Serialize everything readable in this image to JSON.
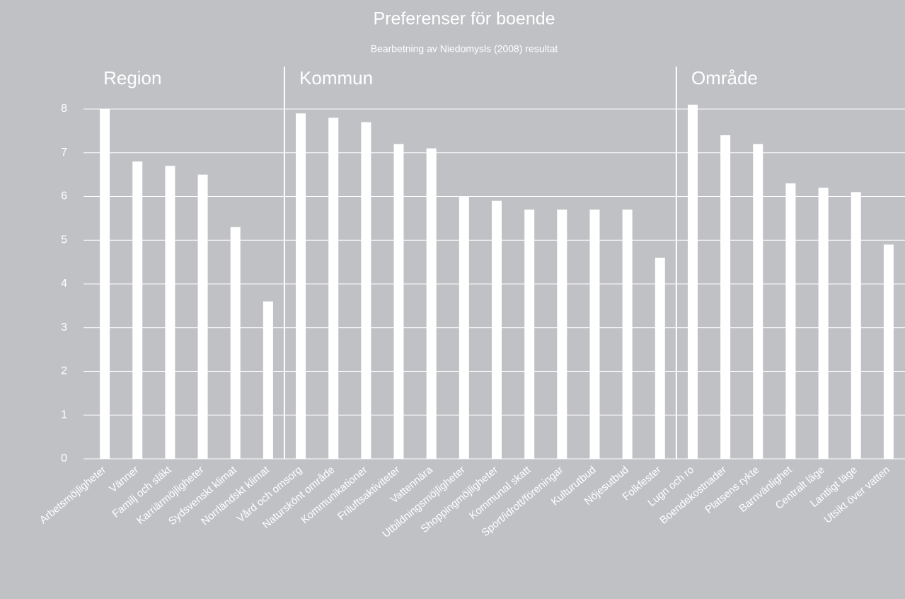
{
  "chart_data": {
    "type": "bar",
    "title": "Preferenser för boende",
    "subtitle": "Bearbetning av Niedomysls (2008) resultat",
    "color": "#ffffff",
    "grid": true,
    "ylim": [
      0,
      8
    ],
    "yticks": [
      0,
      1,
      2,
      3,
      4,
      5,
      6,
      7,
      8
    ],
    "groups": [
      {
        "name": "Region",
        "categories": [
          "Arbetsmöjligheter",
          "Vänner",
          "Familj och släkt",
          "Karriärmöjligheter",
          "Sydsvenskt klimat",
          "Norrländskt klimat"
        ],
        "values": [
          8.0,
          6.8,
          6.7,
          6.5,
          5.3,
          3.6
        ]
      },
      {
        "name": "Kommun",
        "categories": [
          "Vård och omsorg",
          "Naturskönt område",
          "Kommunikationer",
          "Friluftsaktiviteter",
          "Vattennära",
          "Utbildningsmöjligheter",
          "Shoppingmöjligheter",
          "Kommunal skatt",
          "Sport/idrott/föreningar",
          "Kulturutbud",
          "Nöjesutbud",
          "Folkfester"
        ],
        "values": [
          7.9,
          7.8,
          7.7,
          7.2,
          7.1,
          6.0,
          5.9,
          5.7,
          5.7,
          5.7,
          5.7,
          4.6
        ]
      },
      {
        "name": "Område",
        "categories": [
          "Lugn och ro",
          "Boendekostnader",
          "Platsens rykte",
          "Barnvänlighet",
          "Centralt läge",
          "Lantligt läge",
          "Utsikt över vatten"
        ],
        "values": [
          8.1,
          7.4,
          7.2,
          6.3,
          6.2,
          6.1,
          4.9
        ]
      }
    ]
  }
}
